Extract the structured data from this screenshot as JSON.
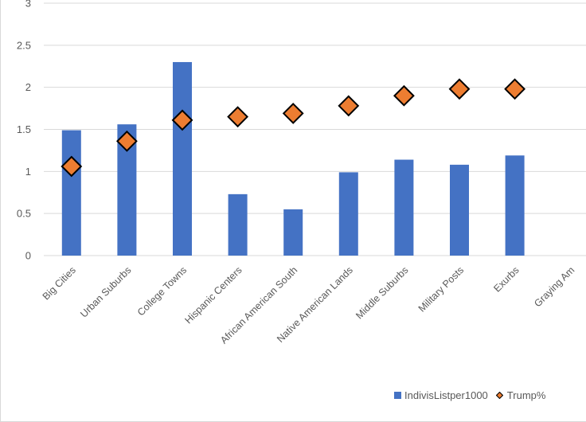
{
  "chart_data": {
    "type": "bar",
    "title": "",
    "xlabel": "",
    "ylabel": "",
    "ylim": [
      0,
      3
    ],
    "yticks": [
      "0",
      "0.5",
      "1",
      "1.5",
      "2",
      "2.5",
      "3"
    ],
    "grid": true,
    "legend_position": "bottom-right",
    "categories": [
      "Big Cities",
      "Urban Suburbs",
      "College Towns",
      "Hispanic Centers",
      "African American South",
      "Native American Lands",
      "Middle Suburbs",
      "Military Posts",
      "Exurbs",
      "Graying Am"
    ],
    "series": [
      {
        "name": "IndivisListper1000",
        "type": "bar",
        "color": "#4472c4",
        "values": [
          1.49,
          1.56,
          2.3,
          0.73,
          0.55,
          0.99,
          1.14,
          1.08,
          1.19,
          null
        ]
      },
      {
        "name": "Trump%",
        "type": "scatter",
        "marker": "diamond",
        "color": "#ed7d31",
        "values": [
          1.06,
          1.36,
          1.61,
          1.65,
          1.69,
          1.78,
          1.9,
          1.98,
          1.98,
          null
        ]
      }
    ]
  },
  "legend": {
    "items": [
      "IndivisListper1000",
      "Trump%"
    ]
  }
}
